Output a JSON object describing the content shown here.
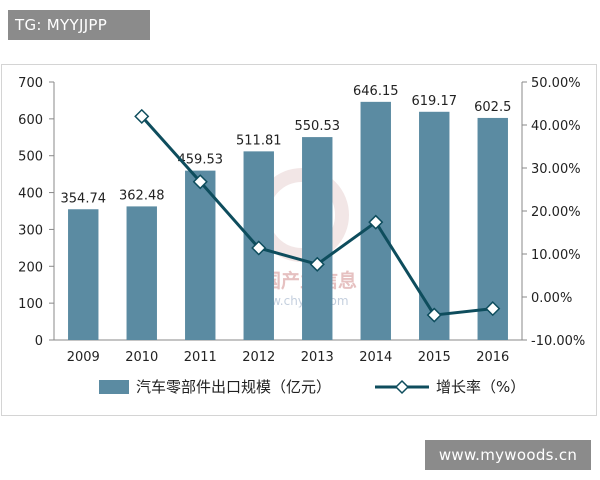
{
  "watermark_top": "TG: MYYJJPP",
  "watermark_bottom": "www.mywoods.cn",
  "watermark_center_cn": "中国产业信息",
  "watermark_center_url": "www.chyxx.com",
  "colors": {
    "bar": "#5b8ba2",
    "line": "#0e4d5d",
    "marker_fill": "#ffffff",
    "axis": "#888888"
  },
  "chart_data": {
    "type": "bar",
    "categories": [
      "2009",
      "2010",
      "2011",
      "2012",
      "2013",
      "2014",
      "2015",
      "2016"
    ],
    "series": [
      {
        "name": "汽车零部件出口规模（亿元）",
        "type": "bar",
        "axis": "left",
        "values": [
          354.74,
          362.48,
          459.53,
          511.81,
          550.53,
          646.15,
          619.17,
          602.5
        ],
        "labels": [
          "354.74",
          "362.48",
          "459.53",
          "511.81",
          "550.53",
          "646.15",
          "619.17",
          "602.5"
        ]
      },
      {
        "name": "增长率（%）",
        "type": "line",
        "axis": "right",
        "values": [
          null,
          42.0,
          26.8,
          11.4,
          7.6,
          17.4,
          -4.2,
          -2.7
        ]
      }
    ],
    "ylim_left": [
      0,
      700
    ],
    "yticks_left": [
      "0",
      "100",
      "200",
      "300",
      "400",
      "500",
      "600",
      "700"
    ],
    "ylim_right": [
      -10,
      50
    ],
    "yticks_right": [
      "-10.00%",
      "0.00%",
      "10.00%",
      "20.00%",
      "30.00%",
      "40.00%",
      "50.00%"
    ],
    "legend_position": "bottom",
    "grid": false
  }
}
